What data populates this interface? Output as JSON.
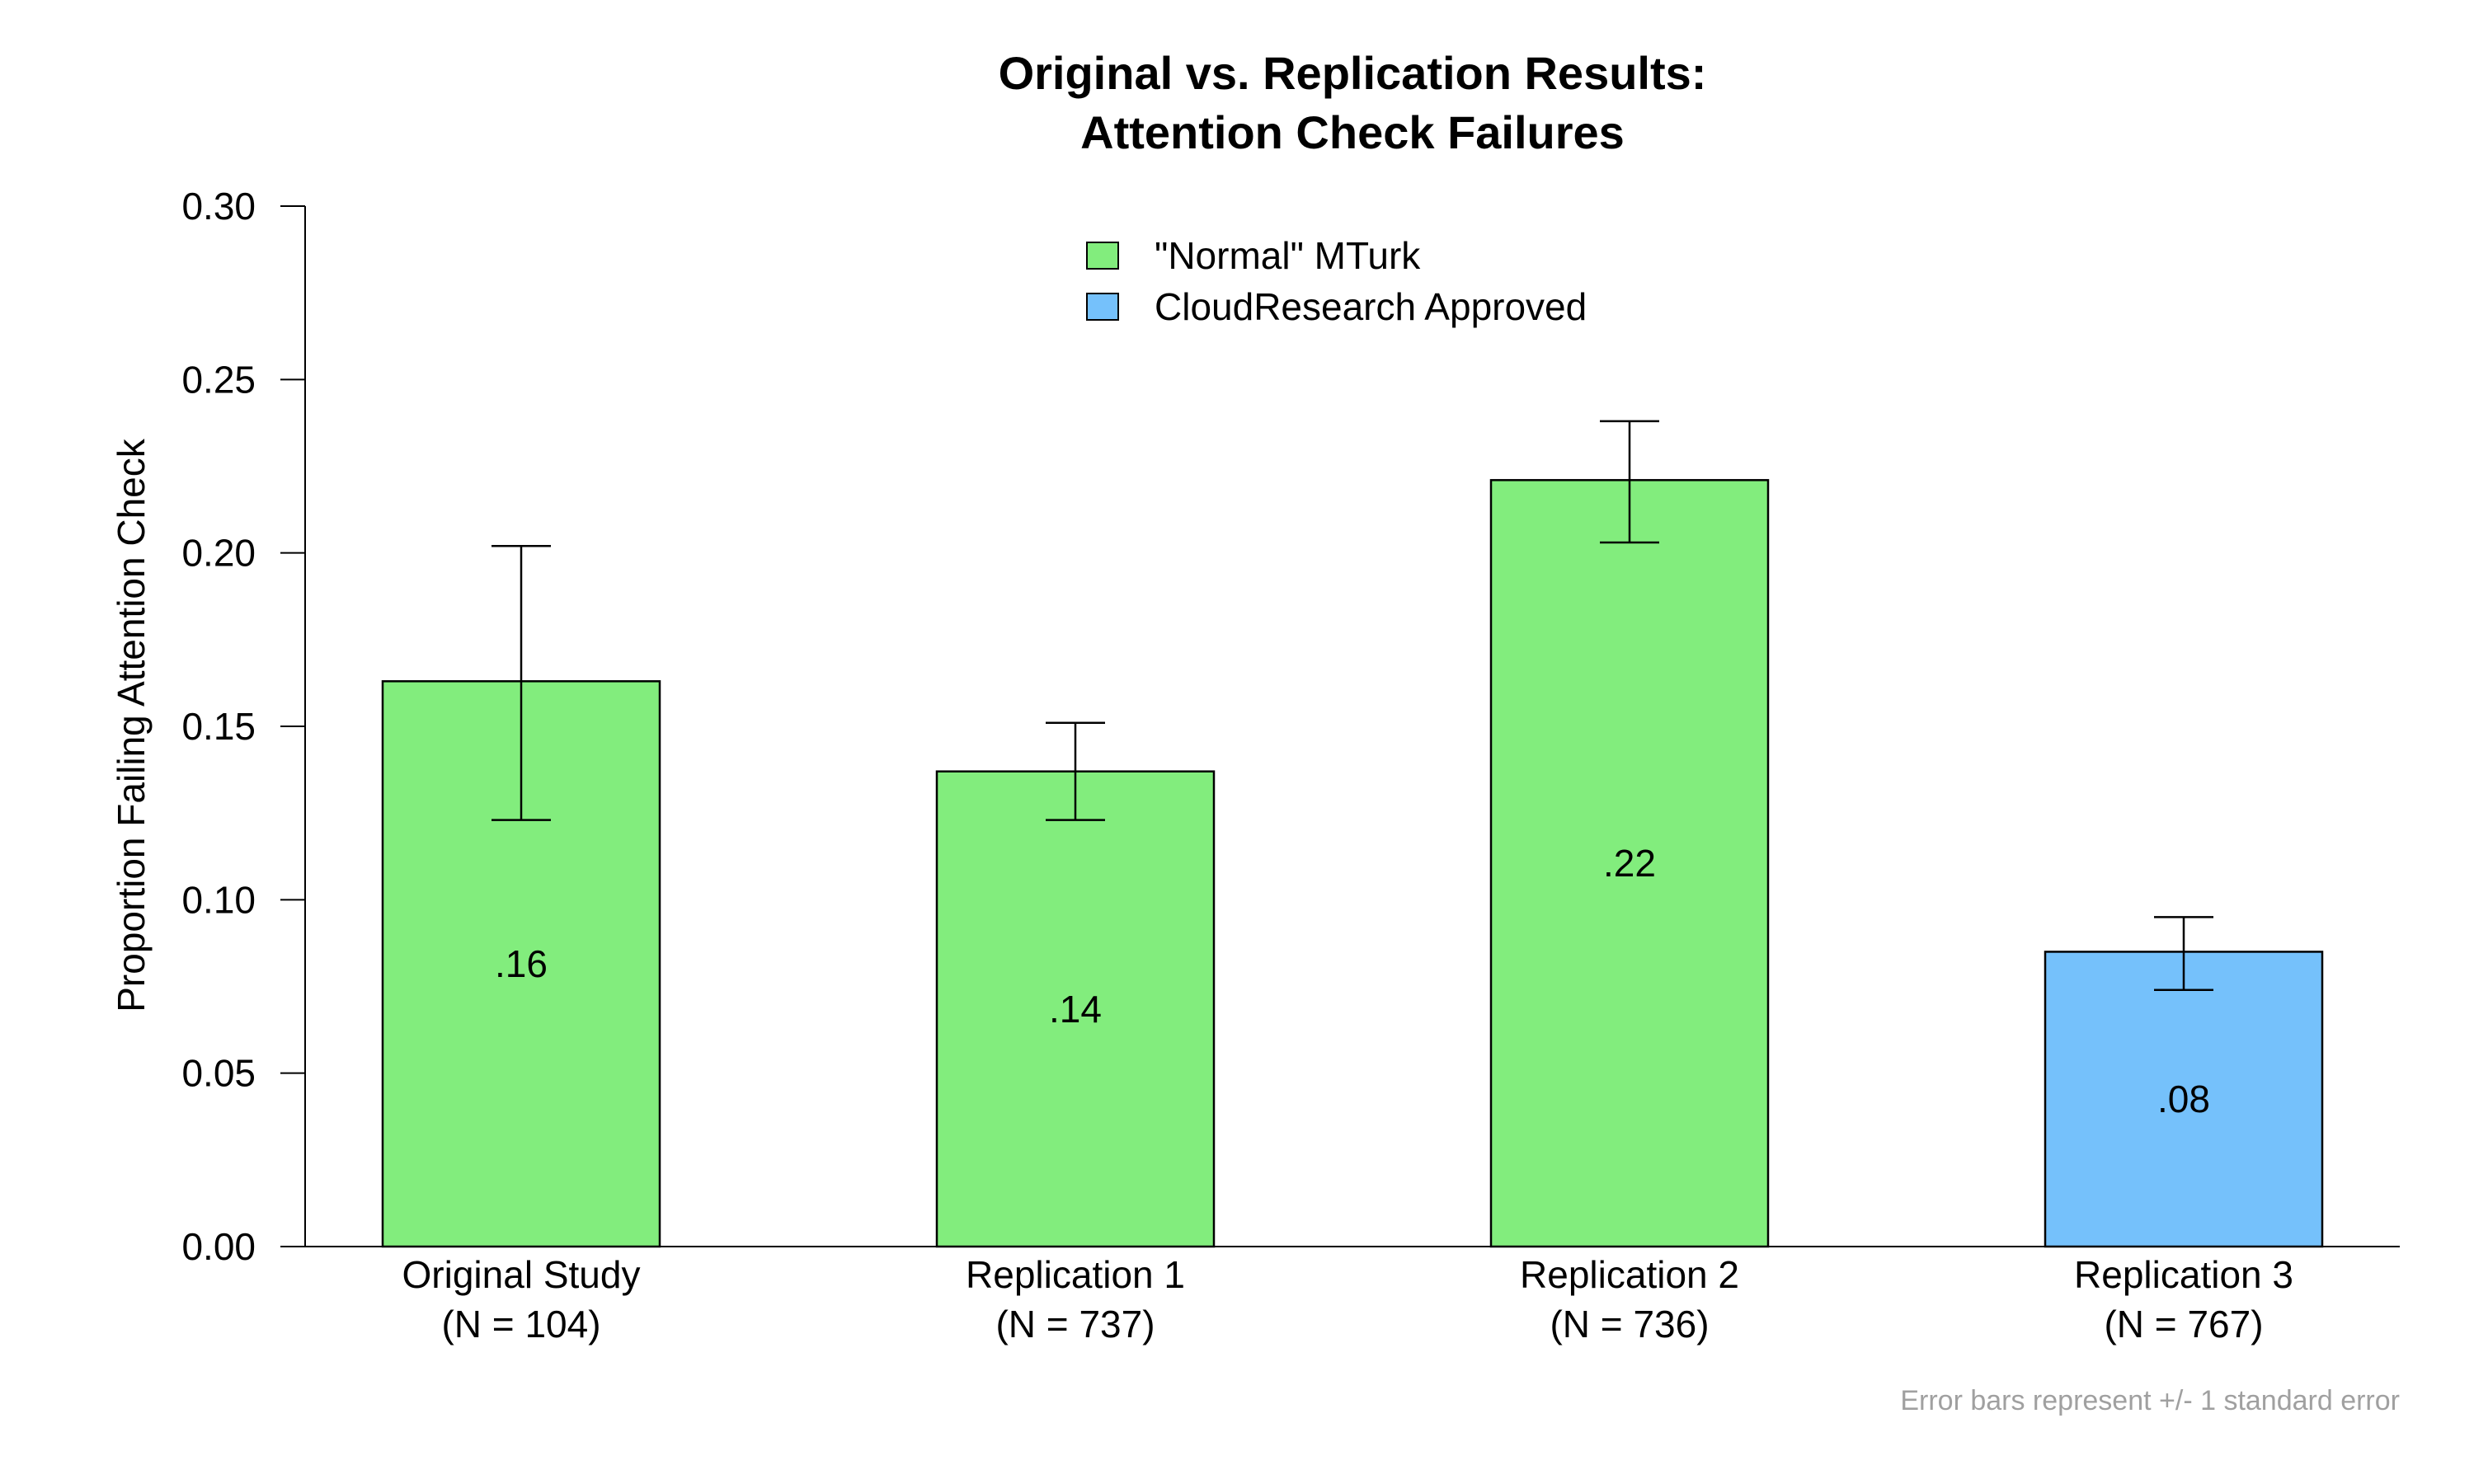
{
  "chart_data": {
    "type": "bar",
    "title": "Original vs. Replication Results:",
    "subtitle": "Attention Check Failures",
    "ylabel": "Proportion Failing Attention Check",
    "xlabel": "",
    "ylim": [
      0,
      0.3
    ],
    "yticks": [
      0.0,
      0.05,
      0.1,
      0.15,
      0.2,
      0.25,
      0.3
    ],
    "ytick_labels": [
      "0.00",
      "0.05",
      "0.10",
      "0.15",
      "0.20",
      "0.25",
      "0.30"
    ],
    "categories": [
      "Original Study",
      "Replication 1",
      "Replication 2",
      "Replication 3"
    ],
    "category_sublabels": [
      "(N = 104)",
      "(N = 737)",
      "(N = 736)",
      "(N = 767)"
    ],
    "values": [
      0.163,
      0.137,
      0.221,
      0.085
    ],
    "value_labels": [
      ".16",
      ".14",
      ".22",
      ".08"
    ],
    "error_low": [
      0.123,
      0.123,
      0.203,
      0.074
    ],
    "error_high": [
      0.202,
      0.151,
      0.238,
      0.095
    ],
    "bar_groups": [
      "normal",
      "normal",
      "normal",
      "approved"
    ],
    "legend": [
      {
        "key": "normal",
        "label": "\"Normal\" MTurk",
        "color": "#82ed7d"
      },
      {
        "key": "approved",
        "label": "CloudResearch Approved",
        "color": "#75c1fb"
      }
    ],
    "legend_position": "top-center",
    "grid": false,
    "footnote": "Error bars represent +/- 1 standard error"
  }
}
